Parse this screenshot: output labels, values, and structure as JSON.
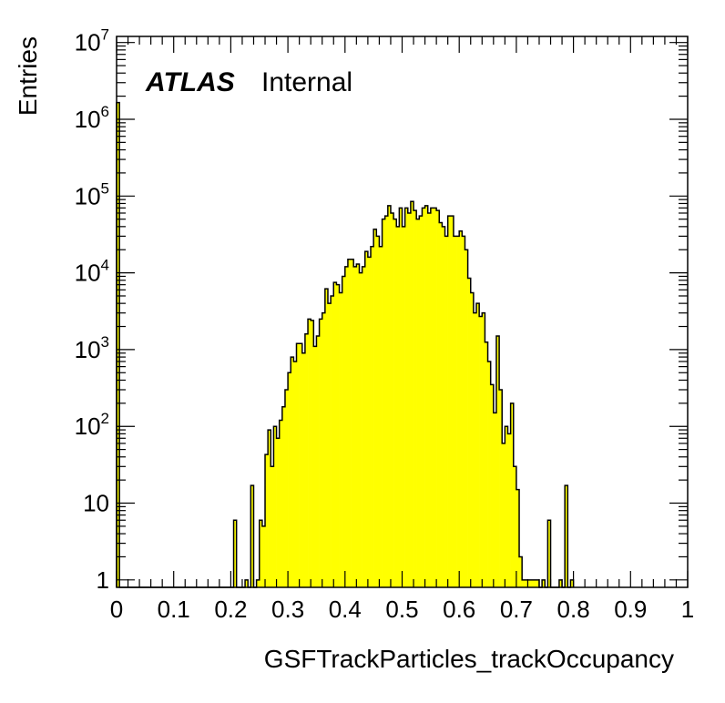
{
  "chart_data": {
    "type": "bar",
    "xlabel": "GSFTrackParticles_trackOccupancy",
    "ylabel": "Entries",
    "xlim": [
      0,
      1
    ],
    "ylim": [
      0.8,
      12000000
    ],
    "yscale": "log",
    "bin_width": 0.005,
    "fill_color": "#ffff00",
    "line_color": "#000000",
    "annotation": {
      "experiment": "ATLAS",
      "status": "Internal"
    },
    "x_tick_labels": [
      "0",
      "0.1",
      "0.2",
      "0.3",
      "0.4",
      "0.5",
      "0.6",
      "0.7",
      "0.8",
      "0.9",
      "1"
    ],
    "y_tick_labels": [
      {
        "mantissa": "1",
        "exp": ""
      },
      {
        "mantissa": "10",
        "exp": ""
      },
      {
        "mantissa": "10",
        "exp": "2"
      },
      {
        "mantissa": "10",
        "exp": "3"
      },
      {
        "mantissa": "10",
        "exp": "4"
      },
      {
        "mantissa": "10",
        "exp": "5"
      },
      {
        "mantissa": "10",
        "exp": "6"
      },
      {
        "mantissa": "10",
        "exp": "7"
      }
    ],
    "values": [
      1650000,
      0,
      0,
      0,
      0,
      0,
      0,
      0,
      0,
      0,
      0,
      0,
      0,
      0,
      0,
      0,
      0,
      0,
      0,
      0,
      0,
      0,
      0,
      0,
      0,
      0,
      0,
      0,
      0,
      0,
      0,
      0,
      0,
      0,
      0,
      0,
      0,
      0,
      0,
      0,
      0,
      6,
      0,
      0,
      0,
      1,
      0,
      17,
      0,
      1,
      6,
      5,
      43,
      90,
      30,
      100,
      70,
      120,
      180,
      300,
      500,
      800,
      700,
      1200,
      1200,
      900,
      1600,
      2500,
      2400,
      1100,
      1500,
      2500,
      3000,
      6200,
      4000,
      5000,
      7500,
      7000,
      5500,
      9000,
      12000,
      15000,
      15000,
      12000,
      13000,
      10000,
      12000,
      19000,
      16000,
      22000,
      37000,
      30000,
      22000,
      50000,
      55000,
      75000,
      60000,
      50000,
      40000,
      70000,
      40000,
      70000,
      60000,
      85000,
      65000,
      50000,
      55000,
      70000,
      75000,
      60000,
      70000,
      70000,
      65000,
      45000,
      40000,
      30000,
      55000,
      55000,
      30000,
      30000,
      35000,
      30000,
      20000,
      8500,
      5500,
      3000,
      4000,
      2700,
      3000,
      1250,
      700,
      350,
      150,
      1500,
      300,
      60,
      100,
      80,
      200,
      30,
      15,
      2,
      1,
      1,
      1,
      1,
      1,
      1,
      0,
      1,
      0,
      6,
      0,
      0,
      0,
      1,
      0,
      17,
      0,
      1
    ]
  }
}
